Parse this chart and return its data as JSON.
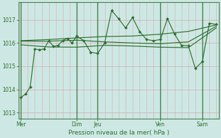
{
  "background_color": "#cde8e4",
  "grid_h_color": "#d4aaaa",
  "grid_v_color": "#d4aaaa",
  "line_color": "#2d6e2d",
  "vline_color": "#4a7a4a",
  "xlabel": "Pression niveau de la mer( hPa )",
  "ylim": [
    1012.75,
    1017.75
  ],
  "yticks": [
    1013,
    1014,
    1015,
    1016,
    1017
  ],
  "xlim": [
    -1,
    85
  ],
  "xtick_positions": [
    0,
    24,
    33,
    60,
    78
  ],
  "xtick_labels": [
    "Mer",
    "Dim",
    "Jeu",
    "Ven",
    "Sam"
  ],
  "vline_positions": [
    0,
    24,
    33,
    60,
    78
  ],
  "num_v_gridlines": 28,
  "line1_x": [
    0,
    2,
    4,
    6,
    8,
    10,
    12,
    14,
    16,
    18,
    20,
    22,
    24,
    27,
    30,
    33,
    36,
    39,
    42,
    45,
    48,
    51,
    54,
    57,
    60,
    63,
    66,
    69,
    72,
    75,
    78,
    81,
    84
  ],
  "line1_y": [
    1013.65,
    1013.8,
    1014.1,
    1015.75,
    1015.7,
    1015.75,
    1016.1,
    1015.85,
    1015.9,
    1016.1,
    1016.2,
    1016.0,
    1016.3,
    1016.1,
    1015.6,
    1015.55,
    1016.0,
    1017.4,
    1017.05,
    1016.65,
    1017.1,
    1016.5,
    1016.15,
    1016.1,
    1016.15,
    1017.05,
    1016.4,
    1015.9,
    1015.88,
    1014.9,
    1015.2,
    1016.85,
    1016.8
  ],
  "line2_x": [
    0,
    12,
    24,
    36,
    48,
    60,
    72,
    84
  ],
  "line2_y": [
    1016.08,
    1016.08,
    1016.12,
    1016.05,
    1016.0,
    1015.97,
    1016.05,
    1016.72
  ],
  "line3_x": [
    0,
    12,
    24,
    36,
    48,
    60,
    72,
    84
  ],
  "line3_y": [
    1016.1,
    1016.15,
    1016.22,
    1016.28,
    1016.3,
    1016.38,
    1016.5,
    1016.78
  ],
  "line4_x": [
    0,
    12,
    24,
    36,
    48,
    60,
    72,
    84
  ],
  "line4_y": [
    1015.92,
    1015.83,
    1015.82,
    1015.9,
    1015.87,
    1015.82,
    1015.8,
    1016.65
  ]
}
